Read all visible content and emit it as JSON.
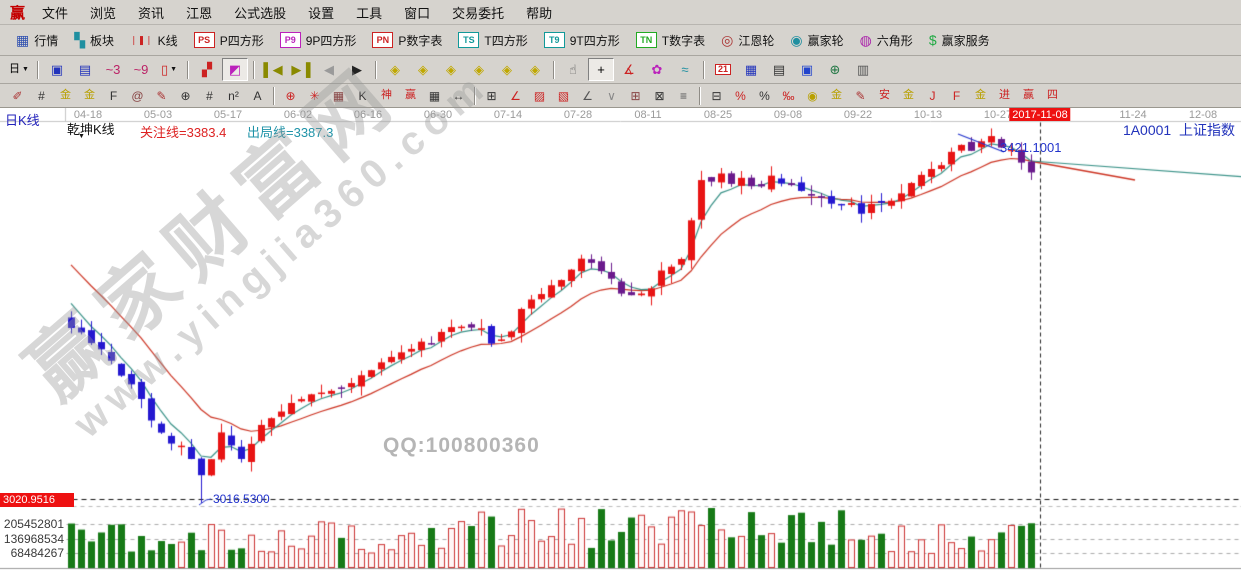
{
  "menubar": {
    "logo": "赢",
    "items": [
      "文件",
      "浏览",
      "资讯",
      "江恩",
      "公式选股",
      "设置",
      "工具",
      "窗口",
      "交易委托",
      "帮助"
    ]
  },
  "toolbar_main": {
    "items": [
      {
        "name": "quotes-button",
        "label": "行情",
        "icon": "grid-icon",
        "glyph": "▦",
        "color": "#3050b0"
      },
      {
        "name": "sectors-button",
        "label": "板块",
        "icon": "blocks-icon",
        "glyph": "▚",
        "color": "#1f8fa0"
      },
      {
        "name": "kline-button",
        "label": "K线",
        "icon": "candles-icon",
        "glyph": "❘❚❘",
        "color": "#cc2222"
      },
      {
        "name": "p-square-button",
        "label": "P四方形",
        "icon": "ps-box-icon",
        "glyph": "PS",
        "color": "#cc2222",
        "box": true
      },
      {
        "name": "9p-square-button",
        "label": "9P四方形",
        "icon": "p9-box-icon",
        "glyph": "P9",
        "color": "#bb22bb",
        "box": true
      },
      {
        "name": "p-table-button",
        "label": "P数字表",
        "icon": "pn-box-icon",
        "glyph": "PN",
        "color": "#cc2222",
        "box": true
      },
      {
        "name": "t-square-button",
        "label": "T四方形",
        "icon": "ts-box-icon",
        "glyph": "TS",
        "color": "#119999",
        "box": true
      },
      {
        "name": "9t-square-button",
        "label": "9T四方形",
        "icon": "t9-box-icon",
        "glyph": "T9",
        "color": "#119999",
        "box": true
      },
      {
        "name": "t-table-button",
        "label": "T数字表",
        "icon": "tn-box-icon",
        "glyph": "TN",
        "color": "#22aa22",
        "box": true
      },
      {
        "name": "gann-wheel-button",
        "label": "江恩轮",
        "icon": "gann-wheel-icon",
        "glyph": "◎",
        "color": "#aa3333"
      },
      {
        "name": "winner-wheel-button",
        "label": "赢家轮",
        "icon": "winner-wheel-icon",
        "glyph": "◉",
        "color": "#1f8fa0"
      },
      {
        "name": "hexagon-button",
        "label": "六角形",
        "icon": "hexagon-icon",
        "glyph": "◍",
        "color": "#aa22aa"
      },
      {
        "name": "winner-service-button",
        "label": "赢家服务",
        "icon": "dollar-icon",
        "glyph": "$",
        "color": "#22aa44"
      }
    ]
  },
  "toolbar_nav": {
    "items": [
      {
        "name": "period-select",
        "glyph": "日",
        "color": "#000000",
        "caret": true
      },
      {
        "sep": true
      },
      {
        "name": "multi-window-button",
        "icon": "window-icon",
        "glyph": "▣",
        "color": "#2233bb"
      },
      {
        "name": "info-document-button",
        "icon": "document-icon",
        "glyph": "▤",
        "color": "#2233bb"
      },
      {
        "name": "wave3-button",
        "icon": "wave3-icon",
        "glyph": "~3",
        "color": "#bb2266"
      },
      {
        "name": "wave9-button",
        "icon": "wave9-icon",
        "glyph": "~9",
        "color": "#bb2266"
      },
      {
        "name": "candle-style-select",
        "icon": "candle-icon",
        "glyph": "▯",
        "color": "#cc2222",
        "caret": true
      },
      {
        "sep": true
      },
      {
        "name": "gann-frame-button",
        "icon": "gann-frame-icon",
        "glyph": "▞",
        "color": "#cc2222"
      },
      {
        "name": "color-chart-button",
        "icon": "color-chart-icon",
        "glyph": "◩",
        "color": "#bb22bb",
        "selected": true
      },
      {
        "sep": true
      },
      {
        "name": "first-page-button",
        "icon": "first-page-icon",
        "glyph": "▌◀",
        "color": "#8a8a00"
      },
      {
        "name": "last-page-button",
        "icon": "last-page-icon",
        "glyph": "▶▐",
        "color": "#8a8a00"
      },
      {
        "name": "prev-button",
        "icon": "prev-icon",
        "glyph": "◀",
        "color": "#9a9a9a"
      },
      {
        "name": "next-button",
        "icon": "next-icon",
        "glyph": "▶",
        "color": "#222222"
      },
      {
        "sep": true
      },
      {
        "name": "diamond-nav-left-button",
        "icon": "diamond-left-icon",
        "glyph": "◈",
        "color": "#c0a800"
      },
      {
        "name": "diamond-nav-right-button",
        "icon": "diamond-right-icon",
        "glyph": "◈",
        "color": "#c0a800"
      },
      {
        "name": "diamond-nav-h-button",
        "icon": "diamond-h-icon",
        "glyph": "◈",
        "color": "#c0a800"
      },
      {
        "name": "diamond-nav-x-button",
        "icon": "diamond-x-icon",
        "glyph": "◈",
        "color": "#c0a800"
      },
      {
        "name": "diamond-nav-cross-button",
        "icon": "diamond-cross-icon",
        "glyph": "◈",
        "color": "#c0a800"
      },
      {
        "name": "diamond-nav-star-button",
        "icon": "diamond-star-icon",
        "glyph": "◈",
        "color": "#c0a800"
      },
      {
        "sep": true
      },
      {
        "name": "hand-tool-button",
        "icon": "hand-icon",
        "glyph": "☝",
        "color": "#555555"
      },
      {
        "name": "crosshair-tool-button",
        "icon": "crosshair-icon",
        "glyph": "+",
        "color": "#000000",
        "selected": true
      },
      {
        "name": "angle-tool-button",
        "icon": "angle-icon",
        "glyph": "∡",
        "color": "#cc2222"
      },
      {
        "name": "gann-flower-button",
        "icon": "flower-icon",
        "glyph": "✿",
        "color": "#bb22bb"
      },
      {
        "name": "wave-tool-button",
        "icon": "wave-icon",
        "glyph": "≈",
        "color": "#1f8fa0"
      },
      {
        "sep": true
      },
      {
        "name": "calendar-button",
        "icon": "calendar-icon",
        "glyph": "21",
        "color": "#cc2222",
        "box": true
      },
      {
        "name": "calculator-button",
        "icon": "calculator-icon",
        "glyph": "▦",
        "color": "#2233bb"
      },
      {
        "name": "notes-button",
        "icon": "notes-icon",
        "glyph": "▤",
        "color": "#333333"
      },
      {
        "name": "save-button",
        "icon": "save-icon",
        "glyph": "▣",
        "color": "#2244cc"
      },
      {
        "name": "export-button",
        "icon": "export-globe-icon",
        "glyph": "⊕",
        "color": "#227744"
      },
      {
        "name": "print-button",
        "icon": "printer-icon",
        "glyph": "▥",
        "color": "#555555"
      }
    ]
  },
  "toolbar_draw": {
    "items": [
      {
        "name": "knife-tool",
        "glyph": "✐",
        "color": "#aa3333"
      },
      {
        "name": "gann-grid-tool",
        "glyph": "#",
        "color": "#333333"
      },
      {
        "name": "golden-section-tool",
        "glyph": "金",
        "color": "#b8a000"
      },
      {
        "name": "golden-ratio-tool",
        "glyph": "金",
        "color": "#b8a000"
      },
      {
        "name": "fibonacci-tool",
        "glyph": "F",
        "color": "#333333"
      },
      {
        "name": "spiral-tool",
        "glyph": "@",
        "color": "#884444"
      },
      {
        "name": "brush-tool",
        "glyph": "✎",
        "color": "#aa3333"
      },
      {
        "name": "circle-grid-tool",
        "glyph": "⊕",
        "color": "#333333"
      },
      {
        "name": "line-grid-tool",
        "glyph": "#",
        "color": "#333333"
      },
      {
        "name": "n-square-tool",
        "glyph": "n²",
        "color": "#333333"
      },
      {
        "name": "text-tool",
        "glyph": "A",
        "color": "#333333"
      },
      {
        "sep": true
      },
      {
        "name": "target-circle-tool",
        "glyph": "⊕",
        "color": "#cc2222"
      },
      {
        "name": "star-tool",
        "glyph": "✳",
        "color": "#cc2222"
      },
      {
        "name": "grid-box-tool",
        "glyph": "▦",
        "color": "#884444"
      },
      {
        "name": "k-mark-tool",
        "glyph": "K",
        "color": "#333333"
      },
      {
        "name": "shen-grid-tool",
        "glyph": "神",
        "color": "#cc2222"
      },
      {
        "name": "ying-grid-tool",
        "glyph": "赢",
        "color": "#cc2222"
      },
      {
        "name": "matrix-tool",
        "glyph": "▦",
        "color": "#333333"
      },
      {
        "name": "width-measure-tool",
        "glyph": "↔",
        "color": "#333333"
      },
      {
        "sep": true
      },
      {
        "name": "frame-tool",
        "glyph": "⊞",
        "color": "#333333"
      },
      {
        "name": "fan-lines-tool",
        "glyph": "∠",
        "color": "#cc2222"
      },
      {
        "name": "fan-box-tool",
        "glyph": "▨",
        "color": "#cc2222"
      },
      {
        "name": "fan-grid-tool",
        "glyph": "▧",
        "color": "#cc2222"
      },
      {
        "name": "angle-lines-tool",
        "glyph": "∠",
        "color": "#555555"
      },
      {
        "name": "zigzag-tool",
        "glyph": "∨",
        "color": "#888888"
      },
      {
        "name": "grid-square-tool",
        "glyph": "⊞",
        "color": "#884444"
      },
      {
        "name": "grid-arrow-tool",
        "glyph": "⊠",
        "color": "#333333"
      },
      {
        "name": "parallel-lines-tool",
        "glyph": "≡",
        "color": "#555555"
      },
      {
        "sep": true
      },
      {
        "name": "stats-tool",
        "glyph": "⊟",
        "color": "#333333"
      },
      {
        "name": "percent-line-tool",
        "glyph": "%",
        "color": "#cc2222"
      },
      {
        "name": "percent-tool",
        "glyph": "%",
        "color": "#333333"
      },
      {
        "name": "percent-levels-tool",
        "glyph": "‰",
        "color": "#cc2222"
      },
      {
        "name": "gold-circle-tool",
        "glyph": "◉",
        "color": "#b8a000"
      },
      {
        "name": "gold-lines-tool",
        "glyph": "金",
        "color": "#b8a000"
      },
      {
        "name": "pen-tool",
        "glyph": "✎",
        "color": "#aa3333"
      },
      {
        "name": "an-grid-tool",
        "glyph": "安",
        "color": "#cc2222"
      },
      {
        "name": "gold-grid-tool",
        "glyph": "金",
        "color": "#b8a000"
      },
      {
        "name": "j-angle-tool",
        "glyph": "J",
        "color": "#cc2222"
      },
      {
        "name": "f-angle-tool",
        "glyph": "F",
        "color": "#cc2222"
      },
      {
        "name": "gold-angle-tool",
        "glyph": "金",
        "color": "#b8a000"
      },
      {
        "name": "jin-angle-tool",
        "glyph": "进",
        "color": "#cc2222"
      },
      {
        "name": "ying-angle-tool",
        "glyph": "赢",
        "color": "#cc2222"
      },
      {
        "name": "si-angle-tool",
        "glyph": "四",
        "color": "#cc2222"
      }
    ]
  },
  "chart": {
    "period_label": "日K线",
    "symbol": "1A0001",
    "symbol_name": "上证指数",
    "indicator": {
      "name": "乾坤K线",
      "attention_label": "关注线=3383.4",
      "exit_label": "出局线=3387.3"
    },
    "price_label": "3421.1001",
    "low_label": "3016.5300",
    "left_axis_label": "3020.9516",
    "volume_axis": [
      "205452801",
      "136968534",
      "68484267"
    ],
    "dates": [
      "04-18",
      "05-03",
      "05-17",
      "06-02",
      "06-16",
      "06-30",
      "07-14",
      "07-28",
      "08-11",
      "08-25",
      "09-08",
      "09-22",
      "10-13",
      "10-27"
    ],
    "crosshair_date": "2017-11-08",
    "future_dates": [
      "11-24",
      "12-08"
    ],
    "watermark": {
      "line1": "赢家财富网",
      "line2": "www.yingjia360.com",
      "qq": "QQ:100800360"
    }
  },
  "chart_data": {
    "type": "candlestick",
    "title": "1A0001 上证指数 日K线 (乾坤K线指标)",
    "period": "day",
    "date_range": [
      "2017-04-18",
      "2017-11-08"
    ],
    "num_days": 97,
    "x_axis": {
      "tick_labels": [
        "04-18",
        "05-03",
        "05-17",
        "06-02",
        "06-16",
        "06-30",
        "07-14",
        "07-28",
        "08-11",
        "08-25",
        "09-08",
        "09-22",
        "10-13",
        "10-27",
        "2017-11-08",
        "11-24",
        "12-08"
      ],
      "crosshair_label": "2017-11-08"
    },
    "y_axis": {
      "min": 3020.9516,
      "max": 3445,
      "low_marker": 3016.53,
      "last_price": 3421.1001,
      "attention_line": 3383.4,
      "exit_line": 3387.3
    },
    "close_anchors": [
      [
        0,
        3220
      ],
      [
        3,
        3186
      ],
      [
        6,
        3146
      ],
      [
        9,
        3100
      ],
      [
        12,
        3066
      ],
      [
        13,
        3048
      ],
      [
        15,
        3095
      ],
      [
        17,
        3072
      ],
      [
        18,
        3089
      ],
      [
        20,
        3112
      ],
      [
        23,
        3135
      ],
      [
        26,
        3146
      ],
      [
        29,
        3157
      ],
      [
        32,
        3180
      ],
      [
        35,
        3197
      ],
      [
        38,
        3214
      ],
      [
        41,
        3209
      ],
      [
        43,
        3197
      ],
      [
        45,
        3237
      ],
      [
        48,
        3260
      ],
      [
        51,
        3299
      ],
      [
        53,
        3282
      ],
      [
        56,
        3248
      ],
      [
        58,
        3260
      ],
      [
        59,
        3282
      ],
      [
        61,
        3299
      ],
      [
        63,
        3379
      ],
      [
        65,
        3385
      ],
      [
        68,
        3379
      ],
      [
        70,
        3385
      ],
      [
        72,
        3373
      ],
      [
        74,
        3368
      ],
      [
        76,
        3362
      ],
      [
        79,
        3351
      ],
      [
        81,
        3356
      ],
      [
        83,
        3373
      ],
      [
        85,
        3390
      ],
      [
        87,
        3402
      ],
      [
        89,
        3419
      ],
      [
        91,
        3425
      ],
      [
        92,
        3430
      ],
      [
        94,
        3413
      ],
      [
        95,
        3402
      ],
      [
        96,
        3392
      ]
    ],
    "low_day": 13,
    "volume_axis_values": [
      205452801,
      136968534,
      68484267
    ],
    "moving_averages": [
      {
        "name": "fast",
        "period": 4,
        "seed": 3262,
        "color": "#3a9288"
      },
      {
        "name": "slow",
        "period": 12,
        "seed": 3300,
        "color": "#cc3322"
      }
    ],
    "legend_position": "none",
    "grid": "dashed-volume-only",
    "colors": {
      "up": "#e81414",
      "down_blue": "#2418d0",
      "down_purple": "#6a1a8c",
      "ma_fast": "#3a9288",
      "ma_slow": "#cc3322",
      "vol_up": "#cc3333",
      "vol_down": "#177a17",
      "grid": "#aaaaaa",
      "level_line": "#111111",
      "crosshair": "#222222",
      "trendline": "#2233cc"
    }
  }
}
